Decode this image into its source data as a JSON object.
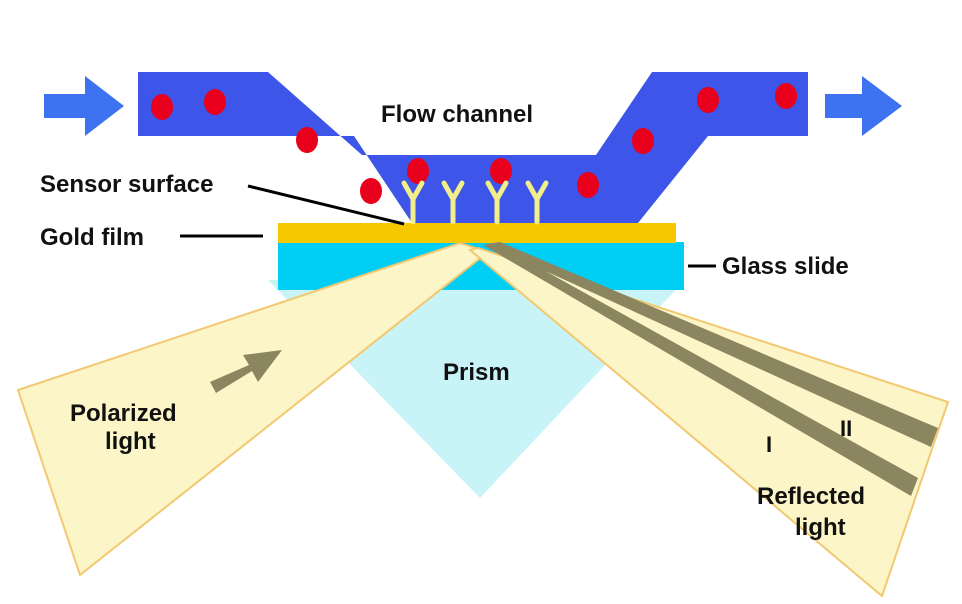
{
  "labels": {
    "flow_channel": "Flow channel",
    "sensor_surface": "Sensor surface",
    "gold_film": "Gold film",
    "glass_slide": "Glass slide",
    "prism": "Prism",
    "polarized_light_line1": "Polarized",
    "polarized_light_line2": "light",
    "reflected_light_line1": "Reflected",
    "reflected_light_line2": "light",
    "beam_one": "I",
    "beam_two": "II"
  },
  "colors": {
    "flow_channel": "#3d55e8",
    "flow_arrow": "#3d73f0",
    "analyte_dot": "#e8001c",
    "antibody": "#f2ee8a",
    "gold_film": "#f5c800",
    "glass_slide": "#00cef5",
    "prism": "#c8f4f8",
    "light_beam": "#fbf5c8",
    "beam_outline": "#f2c870",
    "beam_band": "#8b8660"
  }
}
